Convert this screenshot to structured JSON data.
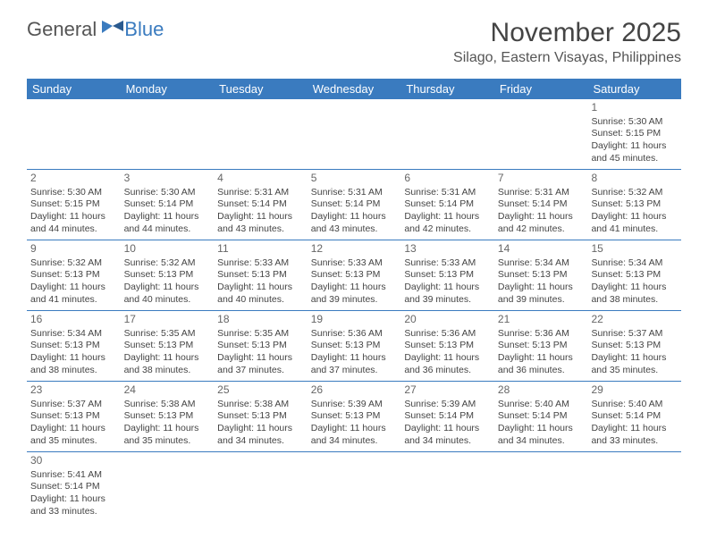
{
  "logo": {
    "text1": "General",
    "text2": "Blue",
    "color_general": "#555555",
    "color_blue": "#3a7bbf"
  },
  "title": "November 2025",
  "location": "Silago, Eastern Visayas, Philippines",
  "header_bg": "#3a7bbf",
  "header_fg": "#ffffff",
  "border_color": "#3a7bbf",
  "day_names": [
    "Sunday",
    "Monday",
    "Tuesday",
    "Wednesday",
    "Thursday",
    "Friday",
    "Saturday"
  ],
  "weeks": [
    [
      null,
      null,
      null,
      null,
      null,
      null,
      {
        "n": "1",
        "sunrise": "Sunrise: 5:30 AM",
        "sunset": "Sunset: 5:15 PM",
        "daylight1": "Daylight: 11 hours",
        "daylight2": "and 45 minutes."
      }
    ],
    [
      {
        "n": "2",
        "sunrise": "Sunrise: 5:30 AM",
        "sunset": "Sunset: 5:15 PM",
        "daylight1": "Daylight: 11 hours",
        "daylight2": "and 44 minutes."
      },
      {
        "n": "3",
        "sunrise": "Sunrise: 5:30 AM",
        "sunset": "Sunset: 5:14 PM",
        "daylight1": "Daylight: 11 hours",
        "daylight2": "and 44 minutes."
      },
      {
        "n": "4",
        "sunrise": "Sunrise: 5:31 AM",
        "sunset": "Sunset: 5:14 PM",
        "daylight1": "Daylight: 11 hours",
        "daylight2": "and 43 minutes."
      },
      {
        "n": "5",
        "sunrise": "Sunrise: 5:31 AM",
        "sunset": "Sunset: 5:14 PM",
        "daylight1": "Daylight: 11 hours",
        "daylight2": "and 43 minutes."
      },
      {
        "n": "6",
        "sunrise": "Sunrise: 5:31 AM",
        "sunset": "Sunset: 5:14 PM",
        "daylight1": "Daylight: 11 hours",
        "daylight2": "and 42 minutes."
      },
      {
        "n": "7",
        "sunrise": "Sunrise: 5:31 AM",
        "sunset": "Sunset: 5:14 PM",
        "daylight1": "Daylight: 11 hours",
        "daylight2": "and 42 minutes."
      },
      {
        "n": "8",
        "sunrise": "Sunrise: 5:32 AM",
        "sunset": "Sunset: 5:13 PM",
        "daylight1": "Daylight: 11 hours",
        "daylight2": "and 41 minutes."
      }
    ],
    [
      {
        "n": "9",
        "sunrise": "Sunrise: 5:32 AM",
        "sunset": "Sunset: 5:13 PM",
        "daylight1": "Daylight: 11 hours",
        "daylight2": "and 41 minutes."
      },
      {
        "n": "10",
        "sunrise": "Sunrise: 5:32 AM",
        "sunset": "Sunset: 5:13 PM",
        "daylight1": "Daylight: 11 hours",
        "daylight2": "and 40 minutes."
      },
      {
        "n": "11",
        "sunrise": "Sunrise: 5:33 AM",
        "sunset": "Sunset: 5:13 PM",
        "daylight1": "Daylight: 11 hours",
        "daylight2": "and 40 minutes."
      },
      {
        "n": "12",
        "sunrise": "Sunrise: 5:33 AM",
        "sunset": "Sunset: 5:13 PM",
        "daylight1": "Daylight: 11 hours",
        "daylight2": "and 39 minutes."
      },
      {
        "n": "13",
        "sunrise": "Sunrise: 5:33 AM",
        "sunset": "Sunset: 5:13 PM",
        "daylight1": "Daylight: 11 hours",
        "daylight2": "and 39 minutes."
      },
      {
        "n": "14",
        "sunrise": "Sunrise: 5:34 AM",
        "sunset": "Sunset: 5:13 PM",
        "daylight1": "Daylight: 11 hours",
        "daylight2": "and 39 minutes."
      },
      {
        "n": "15",
        "sunrise": "Sunrise: 5:34 AM",
        "sunset": "Sunset: 5:13 PM",
        "daylight1": "Daylight: 11 hours",
        "daylight2": "and 38 minutes."
      }
    ],
    [
      {
        "n": "16",
        "sunrise": "Sunrise: 5:34 AM",
        "sunset": "Sunset: 5:13 PM",
        "daylight1": "Daylight: 11 hours",
        "daylight2": "and 38 minutes."
      },
      {
        "n": "17",
        "sunrise": "Sunrise: 5:35 AM",
        "sunset": "Sunset: 5:13 PM",
        "daylight1": "Daylight: 11 hours",
        "daylight2": "and 38 minutes."
      },
      {
        "n": "18",
        "sunrise": "Sunrise: 5:35 AM",
        "sunset": "Sunset: 5:13 PM",
        "daylight1": "Daylight: 11 hours",
        "daylight2": "and 37 minutes."
      },
      {
        "n": "19",
        "sunrise": "Sunrise: 5:36 AM",
        "sunset": "Sunset: 5:13 PM",
        "daylight1": "Daylight: 11 hours",
        "daylight2": "and 37 minutes."
      },
      {
        "n": "20",
        "sunrise": "Sunrise: 5:36 AM",
        "sunset": "Sunset: 5:13 PM",
        "daylight1": "Daylight: 11 hours",
        "daylight2": "and 36 minutes."
      },
      {
        "n": "21",
        "sunrise": "Sunrise: 5:36 AM",
        "sunset": "Sunset: 5:13 PM",
        "daylight1": "Daylight: 11 hours",
        "daylight2": "and 36 minutes."
      },
      {
        "n": "22",
        "sunrise": "Sunrise: 5:37 AM",
        "sunset": "Sunset: 5:13 PM",
        "daylight1": "Daylight: 11 hours",
        "daylight2": "and 35 minutes."
      }
    ],
    [
      {
        "n": "23",
        "sunrise": "Sunrise: 5:37 AM",
        "sunset": "Sunset: 5:13 PM",
        "daylight1": "Daylight: 11 hours",
        "daylight2": "and 35 minutes."
      },
      {
        "n": "24",
        "sunrise": "Sunrise: 5:38 AM",
        "sunset": "Sunset: 5:13 PM",
        "daylight1": "Daylight: 11 hours",
        "daylight2": "and 35 minutes."
      },
      {
        "n": "25",
        "sunrise": "Sunrise: 5:38 AM",
        "sunset": "Sunset: 5:13 PM",
        "daylight1": "Daylight: 11 hours",
        "daylight2": "and 34 minutes."
      },
      {
        "n": "26",
        "sunrise": "Sunrise: 5:39 AM",
        "sunset": "Sunset: 5:13 PM",
        "daylight1": "Daylight: 11 hours",
        "daylight2": "and 34 minutes."
      },
      {
        "n": "27",
        "sunrise": "Sunrise: 5:39 AM",
        "sunset": "Sunset: 5:14 PM",
        "daylight1": "Daylight: 11 hours",
        "daylight2": "and 34 minutes."
      },
      {
        "n": "28",
        "sunrise": "Sunrise: 5:40 AM",
        "sunset": "Sunset: 5:14 PM",
        "daylight1": "Daylight: 11 hours",
        "daylight2": "and 34 minutes."
      },
      {
        "n": "29",
        "sunrise": "Sunrise: 5:40 AM",
        "sunset": "Sunset: 5:14 PM",
        "daylight1": "Daylight: 11 hours",
        "daylight2": "and 33 minutes."
      }
    ],
    [
      {
        "n": "30",
        "sunrise": "Sunrise: 5:41 AM",
        "sunset": "Sunset: 5:14 PM",
        "daylight1": "Daylight: 11 hours",
        "daylight2": "and 33 minutes."
      },
      null,
      null,
      null,
      null,
      null,
      null
    ]
  ]
}
